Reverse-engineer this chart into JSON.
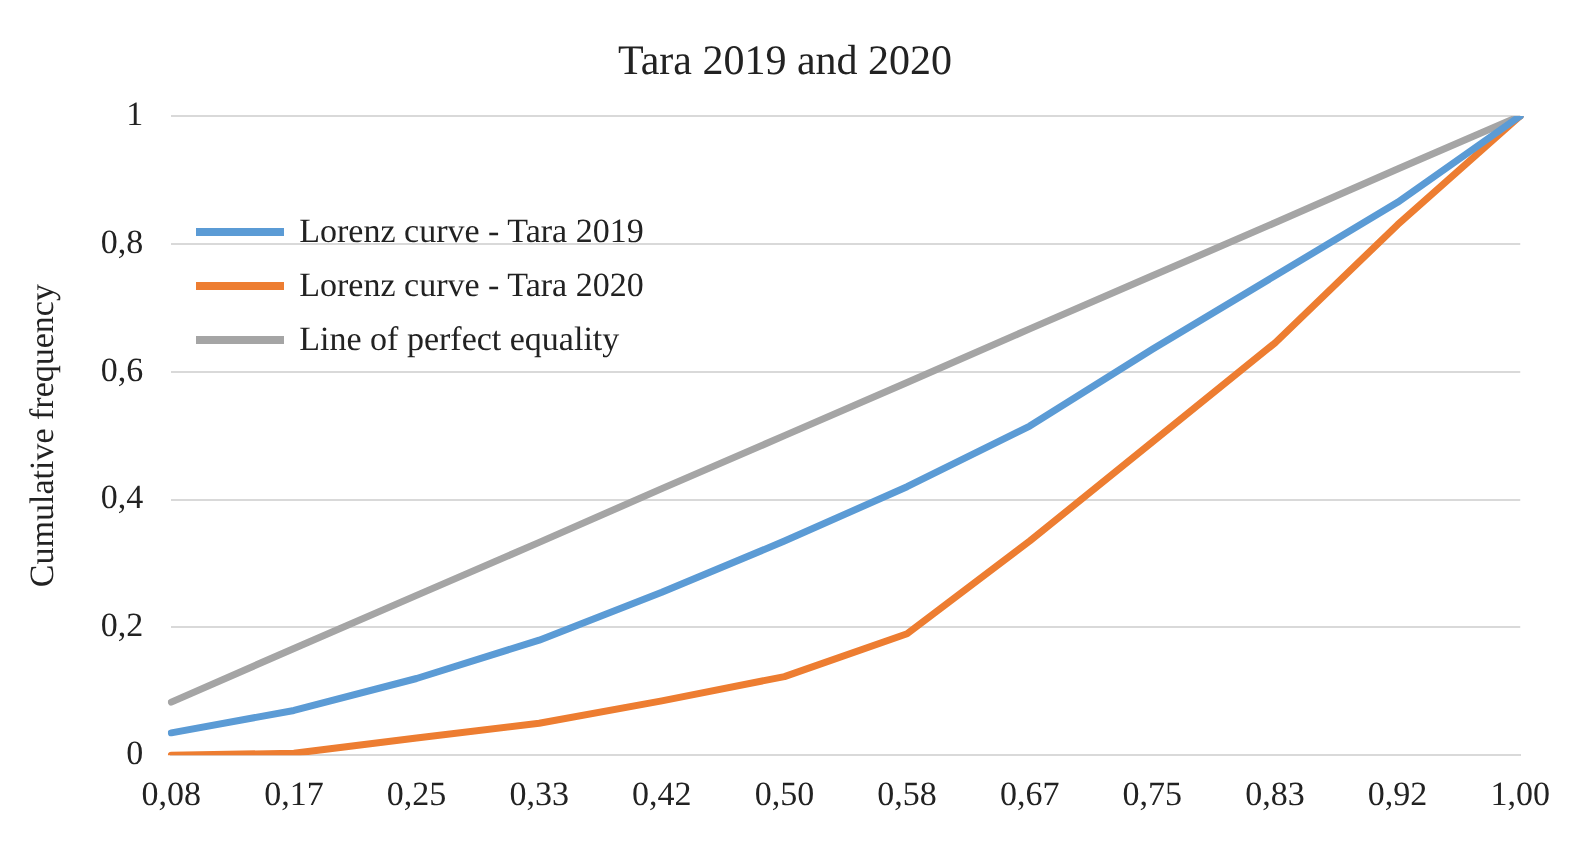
{
  "chart_data": {
    "type": "line",
    "title": "Tara 2019 and 2020",
    "ylabel": "Cumulative frequency",
    "categories": [
      "0,08",
      "0,17",
      "0,25",
      "0,33",
      "0,42",
      "0,50",
      "0,58",
      "0,67",
      "0,75",
      "0,83",
      "0,92",
      "1,00"
    ],
    "series": [
      {
        "name": "Lorenz curve - Tara 2019",
        "color": "#5b9bd5",
        "values": [
          0.035,
          0.07,
          0.12,
          0.18,
          0.255,
          0.335,
          0.42,
          0.515,
          0.635,
          0.75,
          0.865,
          1.0
        ]
      },
      {
        "name": "Lorenz curve - Tara 2020",
        "color": "#ed7d31",
        "values": [
          0.0,
          0.003,
          0.027,
          0.05,
          0.085,
          0.123,
          0.19,
          0.335,
          0.49,
          0.645,
          0.83,
          1.0
        ]
      },
      {
        "name": "Line of perfect equality",
        "color": "#a5a5a5",
        "values": [
          0.083,
          0.167,
          0.25,
          0.333,
          0.417,
          0.5,
          0.583,
          0.667,
          0.75,
          0.833,
          0.917,
          1.0
        ]
      }
    ],
    "ylim": [
      0,
      1
    ],
    "yticks": [
      {
        "value": 0,
        "label": "0"
      },
      {
        "value": 0.2,
        "label": "0,2"
      },
      {
        "value": 0.4,
        "label": "0,4"
      },
      {
        "value": 0.6,
        "label": "0,6"
      },
      {
        "value": 0.8,
        "label": "0,8"
      },
      {
        "value": 1,
        "label": "1"
      }
    ],
    "grid": "y",
    "legend": "top left",
    "marker": "none",
    "line_style": "solid"
  }
}
